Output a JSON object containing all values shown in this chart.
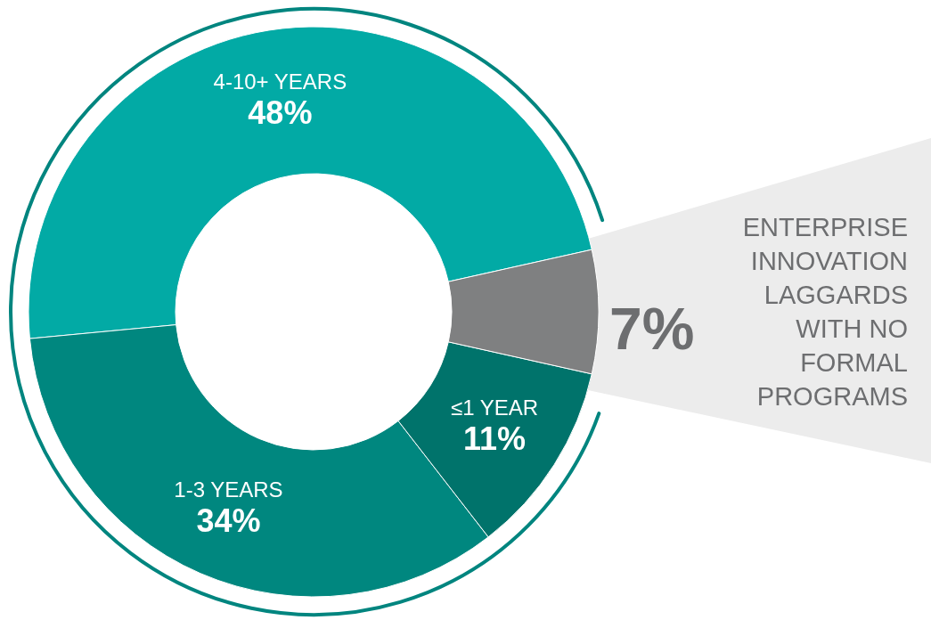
{
  "chart_data": {
    "type": "donut",
    "categories": [
      "4-10+ YEARS",
      "1-3 YEARS",
      "≤1 YEAR",
      "ENTERPRISE INNOVATION LAGGARDS WITH NO FORMAL PROGRAMS"
    ],
    "values": [
      48,
      34,
      11,
      7
    ],
    "value_labels": [
      "48%",
      "34%",
      "11%",
      "7%"
    ],
    "colors": [
      "#02aaa5",
      "#00877f",
      "#00736b",
      "#7f8081"
    ],
    "legend": false
  }
}
